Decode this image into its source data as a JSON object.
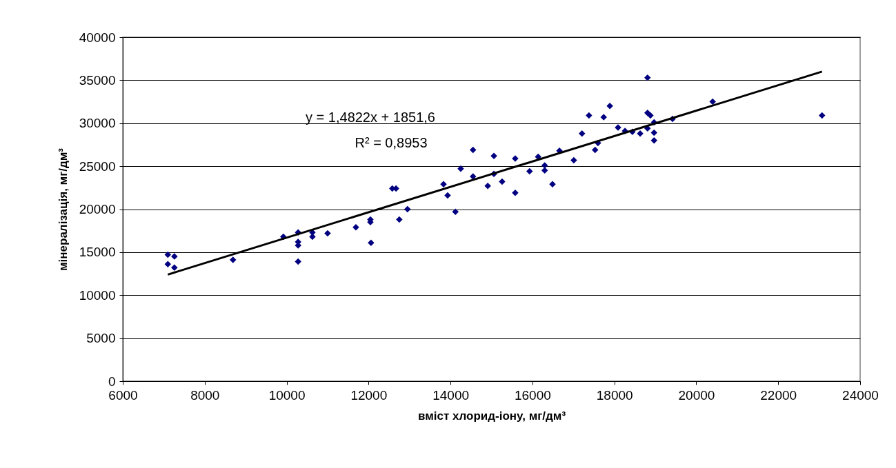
{
  "chart_data": {
    "type": "scatter",
    "xlabel": "вміст хлорид-іону, мг/дм³",
    "ylabel": "мінералізація, мг/дм³",
    "annotations": [
      "y = 1,4822x + 1851,6",
      "R² = 0,8953"
    ],
    "series": [
      {
        "color": "#000080",
        "marker": "diamond",
        "x": [
          7100,
          7100,
          7260,
          7260,
          8690,
          9920,
          10280,
          10280,
          10280,
          10280,
          10630,
          10630,
          11000,
          11690,
          12045,
          12045,
          12060,
          12580,
          12670,
          12750,
          12950,
          13830,
          13930,
          14120,
          14250,
          14550,
          14550,
          14910,
          15060,
          15060,
          15260,
          15580,
          15580,
          15930,
          16140,
          16300,
          16300,
          16490,
          16660,
          17010,
          17210,
          17380,
          17530,
          17600,
          17740,
          17890,
          18090,
          18260,
          18440,
          18630,
          18810,
          18810,
          18880,
          18810,
          18970,
          18970,
          18970,
          19420,
          20400,
          23070
        ],
        "values": [
          14700,
          13600,
          14500,
          13200,
          14100,
          16800,
          17300,
          16200,
          15800,
          13900,
          17300,
          16800,
          17200,
          17900,
          18500,
          18800,
          16100,
          22400,
          22400,
          18800,
          20000,
          22900,
          21600,
          19700,
          24700,
          26900,
          23800,
          22700,
          26200,
          24100,
          23200,
          25900,
          21900,
          24400,
          26100,
          25100,
          24500,
          22900,
          26800,
          25700,
          28800,
          30900,
          26900,
          27700,
          30700,
          32000,
          29500,
          29100,
          29000,
          28800,
          35300,
          31200,
          30900,
          29400,
          30100,
          28900,
          28000,
          30500,
          32500,
          30900
        ]
      },
      {
        "type": "line",
        "color": "#000000",
        "line_style": "solid",
        "x": [
          7100,
          23070
        ],
        "values": [
          12400,
          36000
        ]
      }
    ],
    "xlim": [
      6000,
      24000
    ],
    "xticks": [
      6000,
      8000,
      10000,
      12000,
      14000,
      16000,
      18000,
      20000,
      22000,
      24000
    ],
    "ylim": [
      0,
      40000
    ],
    "yticks": [
      0,
      5000,
      10000,
      15000,
      20000,
      25000,
      30000,
      35000,
      40000
    ],
    "grid": "y"
  }
}
